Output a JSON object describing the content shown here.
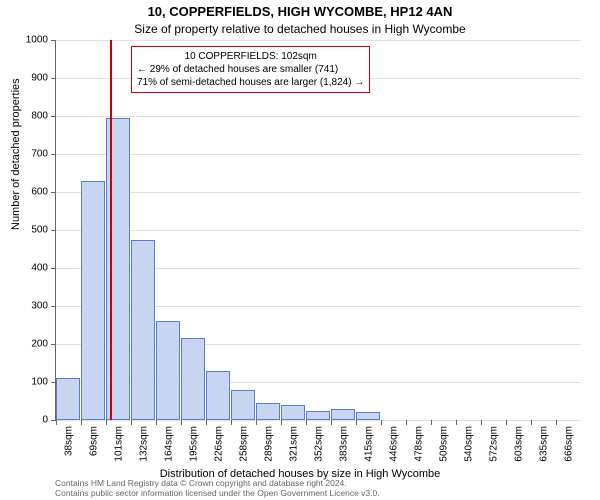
{
  "title": "10, COPPERFIELDS, HIGH WYCOMBE, HP12 4AN",
  "subtitle": "Size of property relative to detached houses in High Wycombe",
  "chart": {
    "type": "histogram",
    "ylabel": "Number of detached properties",
    "xlabel": "Distribution of detached houses by size in High Wycombe",
    "ylim": [
      0,
      1000
    ],
    "ytick_step": 100,
    "yticks": [
      0,
      100,
      200,
      300,
      400,
      500,
      600,
      700,
      800,
      900,
      1000
    ],
    "xticks": [
      "38sqm",
      "69sqm",
      "101sqm",
      "132sqm",
      "164sqm",
      "195sqm",
      "226sqm",
      "258sqm",
      "289sqm",
      "321sqm",
      "352sqm",
      "383sqm",
      "415sqm",
      "446sqm",
      "478sqm",
      "509sqm",
      "540sqm",
      "572sqm",
      "603sqm",
      "635sqm",
      "666sqm"
    ],
    "bar_color": "#c8d5f0",
    "bar_border": "#5a7fc8",
    "marker_color": "#cc0000",
    "grid_color": "#e0e0e0",
    "background_color": "#ffffff",
    "bars": [
      110,
      630,
      795,
      475,
      260,
      215,
      130,
      80,
      45,
      40,
      25,
      30,
      20,
      0,
      0,
      0,
      0,
      0,
      0,
      0,
      0
    ],
    "marker_position_sqm": 102,
    "annotation": {
      "line1": "10 COPPERFIELDS: 102sqm",
      "line2": "← 29% of detached houses are smaller (741)",
      "line3": "71% of semi-detached houses are larger (1,824) →"
    },
    "title_fontsize": 13,
    "label_fontsize": 11,
    "tick_fontsize": 10
  },
  "footer": {
    "line1": "Contains HM Land Registry data © Crown copyright and database right 2024.",
    "line2": "Contains public sector information licensed under the Open Government Licence v3.0."
  }
}
